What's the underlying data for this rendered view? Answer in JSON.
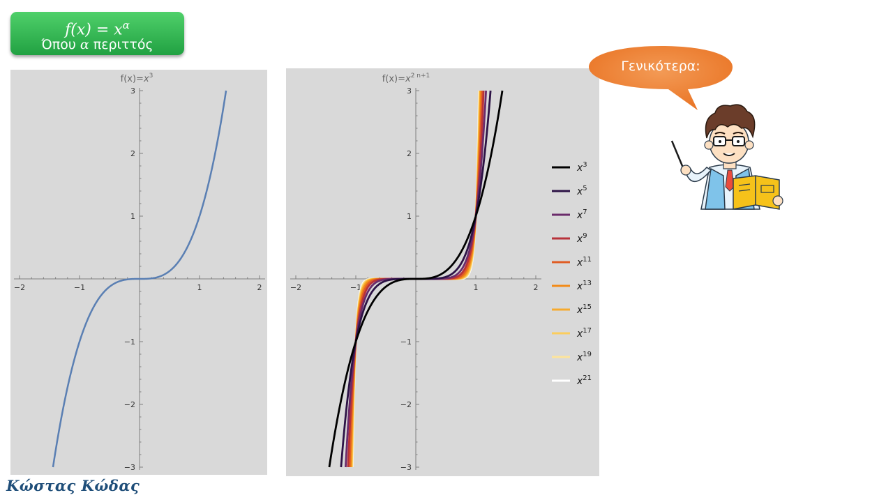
{
  "title": {
    "formula_main": "f(x) = x",
    "formula_exponent": "α",
    "subtitle_prefix": "Όπου ",
    "subtitle_var": "α",
    "subtitle_suffix": " περιττός"
  },
  "speech_bubble": {
    "text": "Γενικότερα:"
  },
  "signature": "Κώστας Κώδας",
  "colors": {
    "title_box": "#2bb24c",
    "bubble": "#ee7d31",
    "plot_background": "#d9d9d9",
    "axis": "#808080",
    "cubic_curve": "#5a7fb3"
  },
  "illustration": {
    "icon": "teacher-with-book-and-pointer-icon"
  },
  "chart_data": [
    {
      "type": "line",
      "title": "f(x)=",
      "title_power_base": "x",
      "title_power_exp": "3",
      "xlim": [
        -2,
        2
      ],
      "ylim": [
        -3,
        3
      ],
      "x_ticks": [
        -2,
        -1,
        1,
        2
      ],
      "y_ticks": [
        -3,
        -2,
        -1,
        1,
        2,
        3
      ],
      "series": [
        {
          "function": "x^3",
          "exponent": 3,
          "x_range": [
            -1.442,
            1.442
          ],
          "color": "#5a7fb3"
        }
      ],
      "grid": false
    },
    {
      "type": "line",
      "title": "f(x)=",
      "title_power_base": "x",
      "title_power_exp": "2 n+1",
      "xlim": [
        -2,
        2
      ],
      "ylim": [
        -3,
        3
      ],
      "x_ticks": [
        -2,
        -1,
        1,
        2
      ],
      "y_ticks": [
        -3,
        -2,
        -1,
        1,
        2,
        3
      ],
      "legend_position": "right",
      "grid": false,
      "series": [
        {
          "name": "x",
          "exponent": 3,
          "color": "#000000"
        },
        {
          "name": "x",
          "exponent": 5,
          "color": "#2d1346"
        },
        {
          "name": "x",
          "exponent": 7,
          "color": "#6b2c6b"
        },
        {
          "name": "x",
          "exponent": 9,
          "color": "#b8323a"
        },
        {
          "name": "x",
          "exponent": 11,
          "color": "#e05d24"
        },
        {
          "name": "x",
          "exponent": 13,
          "color": "#f28a18"
        },
        {
          "name": "x",
          "exponent": 15,
          "color": "#f6aa2e"
        },
        {
          "name": "x",
          "exponent": 17,
          "color": "#fbcd5d"
        },
        {
          "name": "x",
          "exponent": 19,
          "color": "#fde49a"
        },
        {
          "name": "x",
          "exponent": 21,
          "color": "#ffffff"
        }
      ]
    }
  ]
}
